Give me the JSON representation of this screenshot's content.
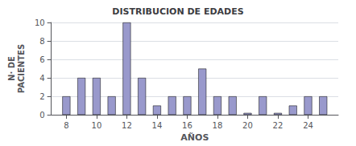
{
  "chart_data": {
    "type": "bar",
    "title": "DISTRIBUCION DE EDADES",
    "xlabel": "AÑOS",
    "ylabel": "N· DE\nPACIENTES",
    "x": [
      8,
      9,
      10,
      11,
      12,
      13,
      14,
      15,
      16,
      17,
      18,
      19,
      20,
      21,
      22,
      23,
      24,
      25
    ],
    "values": [
      2,
      4,
      4,
      2,
      10,
      4,
      1,
      2,
      2,
      5,
      2,
      2,
      0.2,
      2,
      0.2,
      1,
      2,
      2
    ],
    "color": "#9999cc",
    "xlim": [
      7,
      26
    ],
    "xticks": [
      8,
      10,
      12,
      14,
      16,
      18,
      20,
      22,
      24
    ],
    "ylim": [
      0,
      10
    ],
    "yticks": [
      0,
      2,
      4,
      6,
      8,
      10
    ],
    "grid": true
  }
}
